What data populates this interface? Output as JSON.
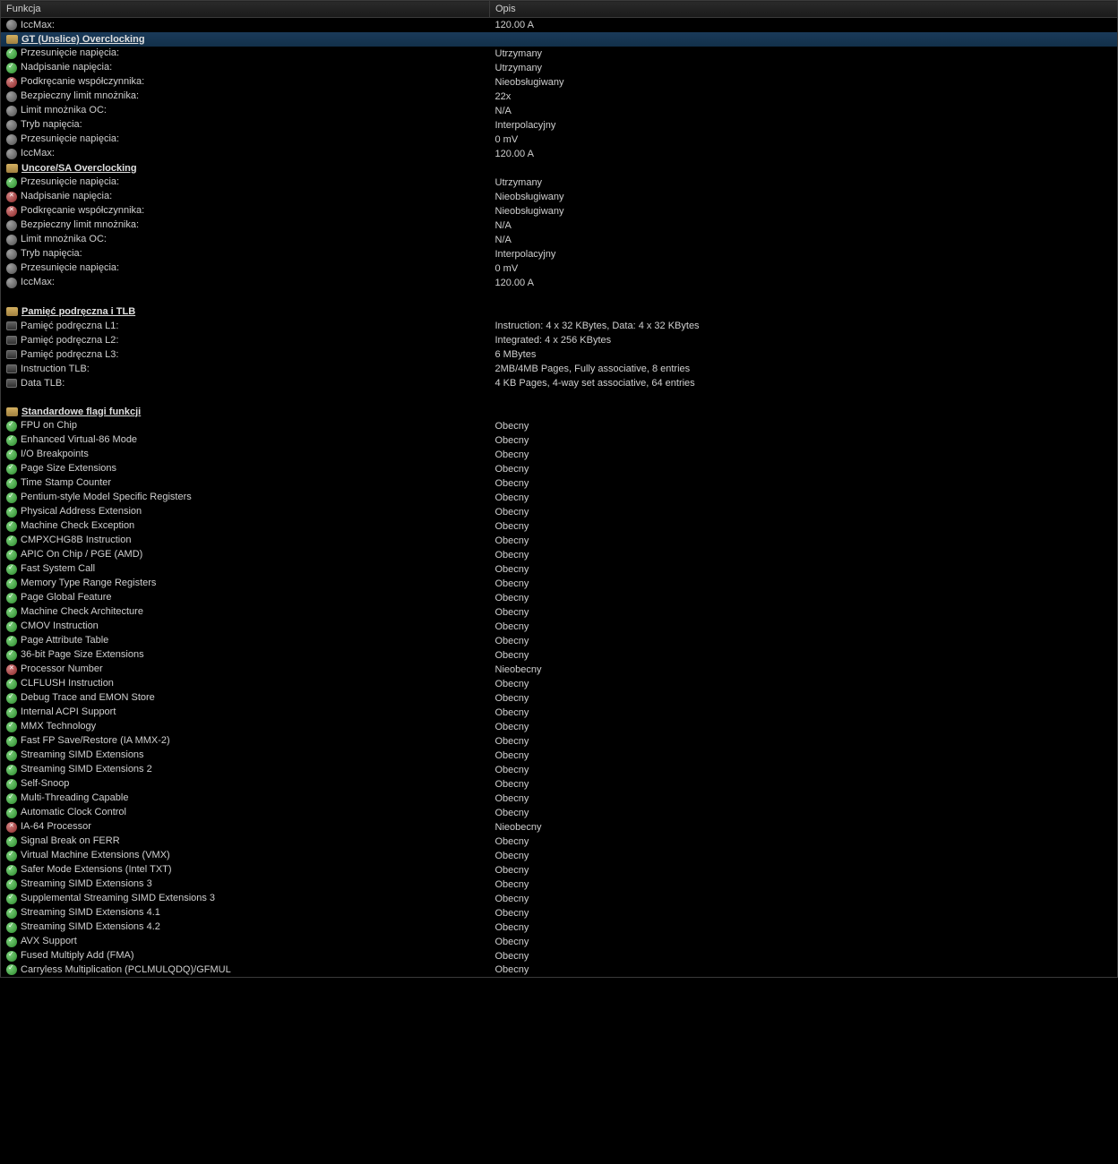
{
  "headers": {
    "col1": "Funkcja",
    "col2": "Opis"
  },
  "rows": [
    {
      "type": "item",
      "icon": "gray",
      "label": "IccMax:",
      "value": "120.00 A"
    },
    {
      "type": "section",
      "icon": "folder",
      "label": "GT (Unslice) Overclocking",
      "highlight": true
    },
    {
      "type": "item",
      "icon": "green",
      "label": "Przesunięcie napięcia:",
      "value": "Utrzymany"
    },
    {
      "type": "item",
      "icon": "green",
      "label": "Nadpisanie napięcia:",
      "value": "Utrzymany"
    },
    {
      "type": "item",
      "icon": "red",
      "label": "Podkręcanie współczynnika:",
      "value": "Nieobsługiwany"
    },
    {
      "type": "item",
      "icon": "gray",
      "label": "Bezpieczny limit mnożnika:",
      "value": "22x"
    },
    {
      "type": "item",
      "icon": "gray",
      "label": "Limit mnożnika OC:",
      "value": "N/A"
    },
    {
      "type": "item",
      "icon": "gray",
      "label": "Tryb napięcia:",
      "value": "Interpolacyjny"
    },
    {
      "type": "item",
      "icon": "gray",
      "label": "Przesunięcie napięcia:",
      "value": "0 mV"
    },
    {
      "type": "item",
      "icon": "gray",
      "label": "IccMax:",
      "value": "120.00 A"
    },
    {
      "type": "section",
      "icon": "folder",
      "label": "Uncore/SA Overclocking"
    },
    {
      "type": "item",
      "icon": "green",
      "label": "Przesunięcie napięcia:",
      "value": "Utrzymany"
    },
    {
      "type": "item",
      "icon": "red",
      "label": "Nadpisanie napięcia:",
      "value": "Nieobsługiwany"
    },
    {
      "type": "item",
      "icon": "red",
      "label": "Podkręcanie współczynnika:",
      "value": "Nieobsługiwany"
    },
    {
      "type": "item",
      "icon": "gray",
      "label": "Bezpieczny limit mnożnika:",
      "value": "N/A"
    },
    {
      "type": "item",
      "icon": "gray",
      "label": "Limit mnożnika OC:",
      "value": "N/A"
    },
    {
      "type": "item",
      "icon": "gray",
      "label": "Tryb napięcia:",
      "value": "Interpolacyjny"
    },
    {
      "type": "item",
      "icon": "gray",
      "label": "Przesunięcie napięcia:",
      "value": "0 mV"
    },
    {
      "type": "item",
      "icon": "gray",
      "label": "IccMax:",
      "value": "120.00 A"
    },
    {
      "type": "spacer"
    },
    {
      "type": "section",
      "icon": "folder",
      "label": "Pamięć podręczna i TLB"
    },
    {
      "type": "item",
      "icon": "chip",
      "label": "Pamięć podręczna L1:",
      "value": "Instruction: 4 x 32 KBytes, Data: 4 x 32 KBytes"
    },
    {
      "type": "item",
      "icon": "chip",
      "label": "Pamięć podręczna L2:",
      "value": "Integrated: 4 x 256 KBytes"
    },
    {
      "type": "item",
      "icon": "chip",
      "label": "Pamięć podręczna L3:",
      "value": "6 MBytes"
    },
    {
      "type": "item",
      "icon": "chip",
      "label": "Instruction TLB:",
      "value": "2MB/4MB Pages, Fully associative, 8 entries"
    },
    {
      "type": "item",
      "icon": "chip",
      "label": "Data TLB:",
      "value": "4 KB Pages, 4-way set associative, 64 entries"
    },
    {
      "type": "spacer"
    },
    {
      "type": "section",
      "icon": "folder",
      "label": "Standardowe flagi funkcji"
    },
    {
      "type": "item",
      "icon": "green",
      "label": "FPU on Chip",
      "value": "Obecny"
    },
    {
      "type": "item",
      "icon": "green",
      "label": "Enhanced Virtual-86 Mode",
      "value": "Obecny"
    },
    {
      "type": "item",
      "icon": "green",
      "label": "I/O Breakpoints",
      "value": "Obecny"
    },
    {
      "type": "item",
      "icon": "green",
      "label": "Page Size Extensions",
      "value": "Obecny"
    },
    {
      "type": "item",
      "icon": "green",
      "label": "Time Stamp Counter",
      "value": "Obecny"
    },
    {
      "type": "item",
      "icon": "green",
      "label": "Pentium-style Model Specific Registers",
      "value": "Obecny"
    },
    {
      "type": "item",
      "icon": "green",
      "label": "Physical Address Extension",
      "value": "Obecny"
    },
    {
      "type": "item",
      "icon": "green",
      "label": "Machine Check Exception",
      "value": "Obecny"
    },
    {
      "type": "item",
      "icon": "green",
      "label": "CMPXCHG8B Instruction",
      "value": "Obecny"
    },
    {
      "type": "item",
      "icon": "green",
      "label": "APIC On Chip / PGE (AMD)",
      "value": "Obecny"
    },
    {
      "type": "item",
      "icon": "green",
      "label": "Fast System Call",
      "value": "Obecny"
    },
    {
      "type": "item",
      "icon": "green",
      "label": "Memory Type Range Registers",
      "value": "Obecny"
    },
    {
      "type": "item",
      "icon": "green",
      "label": "Page Global Feature",
      "value": "Obecny"
    },
    {
      "type": "item",
      "icon": "green",
      "label": "Machine Check Architecture",
      "value": "Obecny"
    },
    {
      "type": "item",
      "icon": "green",
      "label": "CMOV Instruction",
      "value": "Obecny"
    },
    {
      "type": "item",
      "icon": "green",
      "label": "Page Attribute Table",
      "value": "Obecny"
    },
    {
      "type": "item",
      "icon": "green",
      "label": "36-bit Page Size Extensions",
      "value": "Obecny"
    },
    {
      "type": "item",
      "icon": "red",
      "label": "Processor Number",
      "value": "Nieobecny"
    },
    {
      "type": "item",
      "icon": "green",
      "label": "CLFLUSH Instruction",
      "value": "Obecny"
    },
    {
      "type": "item",
      "icon": "green",
      "label": "Debug Trace and EMON Store",
      "value": "Obecny"
    },
    {
      "type": "item",
      "icon": "green",
      "label": "Internal ACPI Support",
      "value": "Obecny"
    },
    {
      "type": "item",
      "icon": "green",
      "label": "MMX Technology",
      "value": "Obecny"
    },
    {
      "type": "item",
      "icon": "green",
      "label": "Fast FP Save/Restore (IA MMX-2)",
      "value": "Obecny"
    },
    {
      "type": "item",
      "icon": "green",
      "label": "Streaming SIMD Extensions",
      "value": "Obecny"
    },
    {
      "type": "item",
      "icon": "green",
      "label": "Streaming SIMD Extensions 2",
      "value": "Obecny"
    },
    {
      "type": "item",
      "icon": "green",
      "label": "Self-Snoop",
      "value": "Obecny"
    },
    {
      "type": "item",
      "icon": "green",
      "label": "Multi-Threading Capable",
      "value": "Obecny"
    },
    {
      "type": "item",
      "icon": "green",
      "label": "Automatic Clock Control",
      "value": "Obecny"
    },
    {
      "type": "item",
      "icon": "red",
      "label": "IA-64 Processor",
      "value": "Nieobecny"
    },
    {
      "type": "item",
      "icon": "green",
      "label": "Signal Break on FERR",
      "value": "Obecny"
    },
    {
      "type": "item",
      "icon": "green",
      "label": "Virtual Machine Extensions (VMX)",
      "value": "Obecny"
    },
    {
      "type": "item",
      "icon": "green",
      "label": "Safer Mode Extensions (Intel TXT)",
      "value": "Obecny"
    },
    {
      "type": "item",
      "icon": "green",
      "label": "Streaming SIMD Extensions 3",
      "value": "Obecny"
    },
    {
      "type": "item",
      "icon": "green",
      "label": "Supplemental Streaming SIMD Extensions 3",
      "value": "Obecny"
    },
    {
      "type": "item",
      "icon": "green",
      "label": "Streaming SIMD Extensions 4.1",
      "value": "Obecny"
    },
    {
      "type": "item",
      "icon": "green",
      "label": "Streaming SIMD Extensions 4.2",
      "value": "Obecny"
    },
    {
      "type": "item",
      "icon": "green",
      "label": "AVX Support",
      "value": "Obecny"
    },
    {
      "type": "item",
      "icon": "green",
      "label": "Fused Multiply Add (FMA)",
      "value": "Obecny"
    },
    {
      "type": "item",
      "icon": "green",
      "label": "Carryless Multiplication (PCLMULQDQ)/GFMUL",
      "value": "Obecny"
    }
  ]
}
